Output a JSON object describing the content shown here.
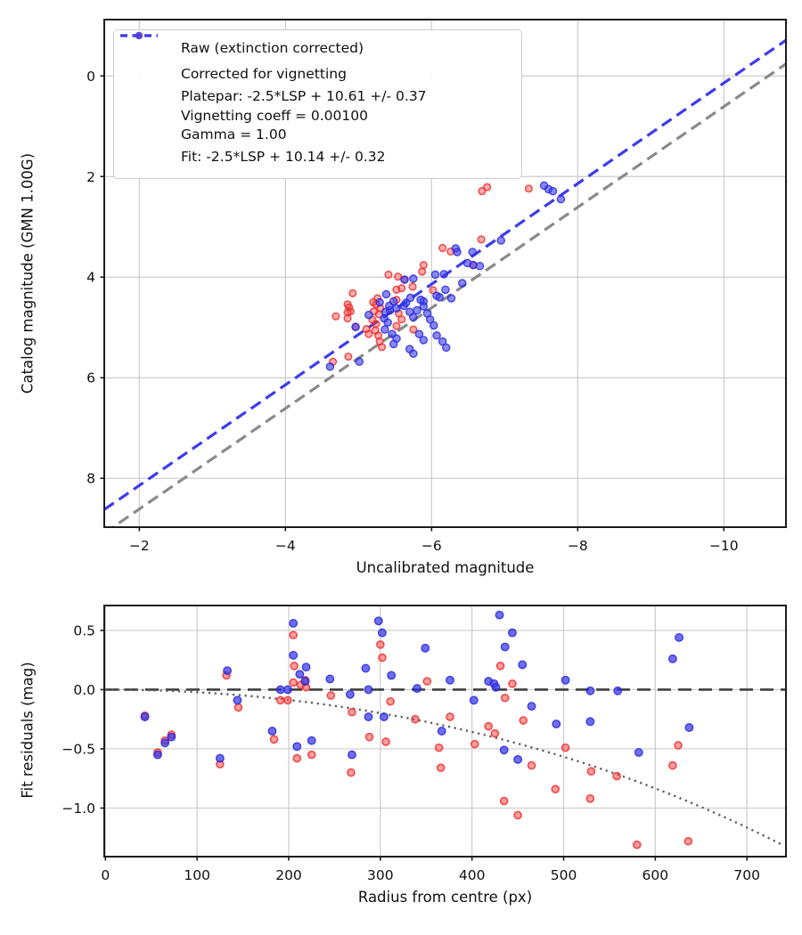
{
  "figure": {
    "background": "#ffffff",
    "accent_blue": "#3c3ceb",
    "accent_red": "#ec2626",
    "grid_color": "#cccccc",
    "spine_color": "#1c1c1c"
  },
  "legend": {
    "entries": [
      {
        "marker": "dot",
        "name": "raw-marker",
        "color": "rgba(244,62,62,0.8)",
        "label": "Raw (extinction corrected)"
      },
      {
        "marker": "dot",
        "name": "corrected-marker",
        "color": "rgba(64,64,238,0.8)",
        "label": "Corrected for vignetting"
      },
      {
        "marker": "dash",
        "name": "platepar-marker",
        "color": "#8a8a8a",
        "label": "Platepar: -2.5*LSP + 10.61 +/- 0.37\nVignetting coeff = 0.00100\nGamma = 1.00"
      },
      {
        "marker": "dash",
        "name": "fit-marker",
        "color": "#3c3ceb",
        "label": "Fit: -2.5*LSP + 10.14 +/- 0.32"
      }
    ]
  },
  "chart_data": [
    {
      "id": "magnitude-fit",
      "type": "scatter",
      "xlabel": "Uncalibrated magnitude",
      "ylabel": "Catalog magnitude (GMN 1.00G)",
      "x_inverted": true,
      "y_inverted": true,
      "xlim": [
        -1.52,
        -10.85
      ],
      "ylim": [
        -1.12,
        8.97
      ],
      "grid": true,
      "xticks": {
        "values": [
          -2,
          -4,
          -6,
          -8,
          -10
        ],
        "labels": [
          "−2",
          "−4",
          "−6",
          "−8",
          "−10"
        ]
      },
      "yticks": {
        "values": [
          0,
          2,
          4,
          6,
          8
        ],
        "labels": [
          "0",
          "2",
          "4",
          "6",
          "8"
        ]
      },
      "lines": [
        {
          "name": "platepar-line",
          "kind": "linear",
          "slope": 1,
          "intercept": 10.61,
          "color": "#8a8a8a",
          "dash": "13 7",
          "width": 3.2
        },
        {
          "name": "fit-line",
          "kind": "linear",
          "slope": 1,
          "intercept": 10.14,
          "color": "#3c3ceb",
          "dash": "13 7",
          "width": 3.2
        }
      ],
      "series": [
        {
          "name": "Raw (extinction corrected)",
          "marker_name": "scatter-point-raw",
          "fill": "rgba(255,60,60,0.42)",
          "stroke": "rgba(236,38,38,0.8)",
          "stroke_width": 1.5,
          "marker_radius": 3.8,
          "points": [
            [
              -6.69,
              2.29
            ],
            [
              -6.76,
              2.21
            ],
            [
              -7.33,
              2.24
            ],
            [
              -6.15,
              3.42
            ],
            [
              -6.26,
              3.49
            ],
            [
              -6.68,
              3.25
            ],
            [
              -6.57,
              3.76
            ],
            [
              -5.89,
              3.76
            ],
            [
              -5.41,
              3.95
            ],
            [
              -5.54,
              3.99
            ],
            [
              -5.87,
              3.89
            ],
            [
              -5.74,
              4.19
            ],
            [
              -5.59,
              4.22
            ],
            [
              -6.02,
              4.26
            ],
            [
              -4.92,
              4.32
            ],
            [
              -4.85,
              4.54
            ],
            [
              -5.2,
              4.5
            ],
            [
              -5.52,
              4.25
            ],
            [
              -5.52,
              4.45
            ],
            [
              -4.89,
              4.68
            ],
            [
              -4.69,
              4.78
            ],
            [
              -4.87,
              4.6
            ],
            [
              -4.85,
              4.7
            ],
            [
              -4.85,
              4.82
            ],
            [
              -4.96,
              4.99
            ],
            [
              -4.65,
              5.68
            ],
            [
              -4.86,
              5.58
            ],
            [
              -5.11,
              5.03
            ],
            [
              -5.14,
              5.13
            ],
            [
              -5.19,
              4.85
            ],
            [
              -5.21,
              4.68
            ],
            [
              -5.24,
              4.54
            ],
            [
              -5.26,
              4.42
            ],
            [
              -5.3,
              4.62
            ],
            [
              -5.28,
              4.74
            ],
            [
              -5.24,
              4.93
            ],
            [
              -5.23,
              5.06
            ],
            [
              -5.27,
              5.16
            ],
            [
              -5.29,
              5.28
            ],
            [
              -5.32,
              5.39
            ],
            [
              -5.55,
              4.72
            ],
            [
              -5.59,
              4.84
            ],
            [
              -5.52,
              4.97
            ],
            [
              -5.75,
              5.04
            ],
            [
              -5.63,
              4.05
            ]
          ]
        },
        {
          "name": "Corrected for vignetting",
          "marker_name": "scatter-point-corrected",
          "fill": "rgba(58,58,235,0.6)",
          "stroke": "rgba(40,40,220,0.85)",
          "stroke_width": 1.3,
          "marker_radius": 4.1,
          "points": [
            [
              -7.54,
              2.18
            ],
            [
              -7.6,
              2.25
            ],
            [
              -7.66,
              2.29
            ],
            [
              -7.77,
              2.45
            ],
            [
              -6.95,
              3.27
            ],
            [
              -6.33,
              3.43
            ],
            [
              -6.35,
              3.5
            ],
            [
              -6.56,
              3.5
            ],
            [
              -6.49,
              3.72
            ],
            [
              -6.57,
              3.76
            ],
            [
              -6.66,
              3.78
            ],
            [
              -6.17,
              3.94
            ],
            [
              -6.05,
              3.95
            ],
            [
              -6.42,
              4.12
            ],
            [
              -6.07,
              4.37
            ],
            [
              -6.11,
              4.4
            ],
            [
              -6.19,
              4.25
            ],
            [
              -6.27,
              4.42
            ],
            [
              -5.63,
              4.05
            ],
            [
              -5.75,
              4.03
            ],
            [
              -5.38,
              4.34
            ],
            [
              -5.43,
              4.66
            ],
            [
              -5.62,
              4.57
            ],
            [
              -5.89,
              4.48
            ],
            [
              -5.14,
              4.75
            ],
            [
              -5.29,
              4.5
            ],
            [
              -5.36,
              5.04
            ],
            [
              -5.4,
              4.9
            ],
            [
              -5.35,
              4.82
            ],
            [
              -5.37,
              4.69
            ],
            [
              -5.42,
              4.57
            ],
            [
              -5.48,
              4.48
            ],
            [
              -5.52,
              4.62
            ],
            [
              -5.46,
              5.13
            ],
            [
              -5.52,
              5.22
            ],
            [
              -5.48,
              5.33
            ],
            [
              -5.65,
              4.51
            ],
            [
              -5.71,
              4.41
            ],
            [
              -5.7,
              4.69
            ],
            [
              -5.75,
              4.8
            ],
            [
              -5.8,
              4.66
            ],
            [
              -5.85,
              4.45
            ],
            [
              -5.89,
              4.58
            ],
            [
              -5.94,
              4.72
            ],
            [
              -5.98,
              4.84
            ],
            [
              -6.03,
              4.96
            ],
            [
              -5.83,
              5.13
            ],
            [
              -5.89,
              5.25
            ],
            [
              -6.07,
              5.16
            ],
            [
              -6.15,
              5.28
            ],
            [
              -6.2,
              5.4
            ],
            [
              -5.7,
              5.43
            ],
            [
              -5.75,
              5.52
            ],
            [
              -5.01,
              5.68
            ],
            [
              -4.61,
              5.78
            ],
            [
              -4.96,
              4.99
            ]
          ]
        }
      ]
    },
    {
      "id": "fit-residuals",
      "type": "scatter",
      "xlabel": "Radius from centre (px)",
      "ylabel": "Fit residuals (mag)",
      "x_inverted": false,
      "y_inverted": false,
      "xlim": [
        -1.3,
        742.6
      ],
      "ylim": [
        0.71,
        -1.41
      ],
      "grid": true,
      "xticks": {
        "values": [
          0,
          100,
          200,
          300,
          400,
          500,
          600,
          700
        ],
        "labels": [
          "0",
          "100",
          "200",
          "300",
          "400",
          "500",
          "600",
          "700"
        ]
      },
      "yticks": {
        "values": [
          0.5,
          0.0,
          -0.5,
          -1.0
        ],
        "labels": [
          "0.5",
          "0.0",
          "−0.5",
          "−1.0"
        ]
      },
      "lines": [
        {
          "name": "zero-line",
          "kind": "hline",
          "y": 0,
          "color": "#3f3f3f",
          "dash": "15 8",
          "width": 2.6
        },
        {
          "name": "vignetting-model-curve",
          "kind": "vignette",
          "coeff": 0.001,
          "formula": "10*log10(cos(coeff*r))",
          "color": "#5f5f5f",
          "dash": "2.2 4.6",
          "width": 2.4
        }
      ],
      "series": [
        {
          "name": "Raw (extinction corrected)",
          "marker_name": "scatter-point-raw",
          "fill": "rgba(255,60,60,0.5)",
          "stroke": "rgba(236,38,38,0.8)",
          "stroke_width": 1.6,
          "marker_radius": 4.0,
          "points": [
            [
              43,
              -0.22
            ],
            [
              57,
              -0.53
            ],
            [
              65,
              -0.43
            ],
            [
              72,
              -0.38
            ],
            [
              125,
              -0.63
            ],
            [
              132,
              0.12
            ],
            [
              145,
              -0.15
            ],
            [
              184,
              -0.42
            ],
            [
              191,
              -0.09
            ],
            [
              199,
              -0.09
            ],
            [
              205,
              0.46
            ],
            [
              206,
              0.2
            ],
            [
              205,
              0.06
            ],
            [
              213,
              0.04
            ],
            [
              218,
              0.08
            ],
            [
              219,
              0.02
            ],
            [
              209,
              -0.58
            ],
            [
              225,
              -0.55
            ],
            [
              246,
              -0.05
            ],
            [
              269,
              -0.19
            ],
            [
              268,
              -0.7
            ],
            [
              288,
              -0.4
            ],
            [
              306,
              -0.44
            ],
            [
              300,
              0.38
            ],
            [
              302,
              0.27
            ],
            [
              311,
              -0.1
            ],
            [
              338,
              -0.25
            ],
            [
              351,
              0.07
            ],
            [
              364,
              -0.49
            ],
            [
              366,
              -0.66
            ],
            [
              376,
              -0.23
            ],
            [
              403,
              -0.46
            ],
            [
              418,
              -0.31
            ],
            [
              425,
              -0.37
            ],
            [
              431,
              0.2
            ],
            [
              436,
              -0.07
            ],
            [
              444,
              0.05
            ],
            [
              435,
              -0.94
            ],
            [
              450,
              -1.06
            ],
            [
              456,
              -0.26
            ],
            [
              465,
              -0.64
            ],
            [
              491,
              -0.84
            ],
            [
              502,
              -0.49
            ],
            [
              529,
              -0.92
            ],
            [
              530,
              -0.69
            ],
            [
              558,
              -0.73
            ],
            [
              580,
              -1.31
            ],
            [
              619,
              -0.64
            ],
            [
              625,
              -0.47
            ],
            [
              636,
              -1.28
            ]
          ]
        },
        {
          "name": "Corrected for vignetting",
          "marker_name": "scatter-point-corrected",
          "fill": "rgba(52,52,232,0.72)",
          "stroke": "rgba(38,38,215,0.85)",
          "stroke_width": 1.3,
          "marker_radius": 4.3,
          "points": [
            [
              43,
              -0.23
            ],
            [
              57,
              -0.55
            ],
            [
              65,
              -0.45
            ],
            [
              72,
              -0.4
            ],
            [
              125,
              -0.58
            ],
            [
              133,
              0.16
            ],
            [
              144,
              -0.09
            ],
            [
              182,
              -0.35
            ],
            [
              191,
              0.0
            ],
            [
              199,
              0.0
            ],
            [
              205,
              0.56
            ],
            [
              205,
              0.29
            ],
            [
              212,
              0.13
            ],
            [
              219,
              0.19
            ],
            [
              218,
              0.07
            ],
            [
              209,
              -0.48
            ],
            [
              225,
              -0.43
            ],
            [
              245,
              0.09
            ],
            [
              267,
              -0.04
            ],
            [
              269,
              -0.55
            ],
            [
              284,
              0.18
            ],
            [
              287,
              0.0
            ],
            [
              287,
              -0.23
            ],
            [
              298,
              0.58
            ],
            [
              302,
              0.48
            ],
            [
              312,
              0.12
            ],
            [
              304,
              -0.23
            ],
            [
              340,
              0.01
            ],
            [
              349,
              0.35
            ],
            [
              367,
              -0.35
            ],
            [
              376,
              0.08
            ],
            [
              402,
              -0.09
            ],
            [
              418,
              0.07
            ],
            [
              424,
              0.05
            ],
            [
              426,
              0.02
            ],
            [
              430,
              0.63
            ],
            [
              436,
              0.36
            ],
            [
              444,
              0.48
            ],
            [
              455,
              0.21
            ],
            [
              465,
              -0.14
            ],
            [
              435,
              -0.51
            ],
            [
              450,
              -0.59
            ],
            [
              492,
              -0.29
            ],
            [
              502,
              0.08
            ],
            [
              529,
              -0.01
            ],
            [
              529,
              -0.27
            ],
            [
              559,
              -0.01
            ],
            [
              582,
              -0.53
            ],
            [
              619,
              0.26
            ],
            [
              626,
              0.44
            ],
            [
              637,
              -0.32
            ]
          ]
        }
      ]
    }
  ]
}
